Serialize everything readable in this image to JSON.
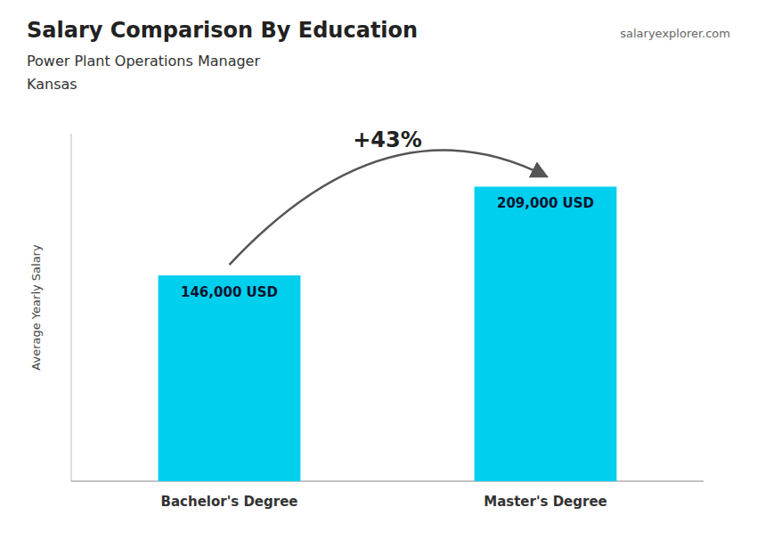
{
  "chart_data": {
    "type": "bar",
    "title": "Salary Comparison By Education",
    "subtitle": "Power Plant Operations Manager",
    "annotations": [
      "Kansas",
      "+43%",
      "salaryexplorer.com"
    ],
    "ylabel": "Average Yearly Salary",
    "categories": [
      "Bachelor's Degree",
      "Master's Degree"
    ],
    "values": [
      146000,
      209000
    ],
    "value_labels": [
      "146,000 USD",
      "209,000 USD"
    ],
    "data_labels": true,
    "color": "#00CFEE",
    "ylim": [
      0,
      246620
    ],
    "tick_labels": false,
    "grid": false
  }
}
